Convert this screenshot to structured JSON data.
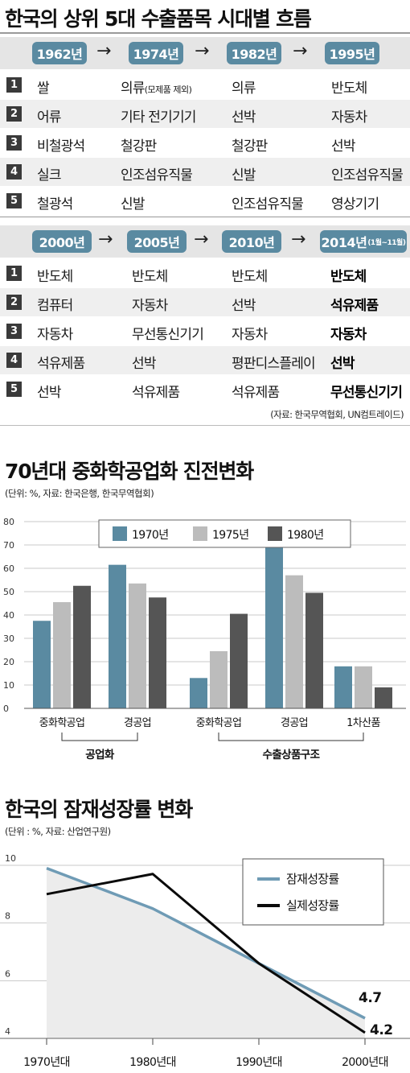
{
  "table": {
    "title": "한국의 상위 5대 수출품목 시대별 흐름",
    "block1": {
      "eras": [
        "1962년",
        "1974년",
        "1982년",
        "1995년"
      ],
      "rows": [
        {
          "rank": "1",
          "cells": [
            "쌀",
            "의류(모제품 제외)",
            "의류",
            "반도체"
          ]
        },
        {
          "rank": "2",
          "cells": [
            "어류",
            "기타 전기기기",
            "선박",
            "자동차"
          ]
        },
        {
          "rank": "3",
          "cells": [
            "비철광석",
            "철강판",
            "철강판",
            "선박"
          ]
        },
        {
          "rank": "4",
          "cells": [
            "실크",
            "인조섬유직물",
            "신발",
            "인조섬유직물"
          ]
        },
        {
          "rank": "5",
          "cells": [
            "철광석",
            "신발",
            "인조섬유직물",
            "영상기기"
          ]
        }
      ]
    },
    "block2": {
      "eras": [
        "2000년",
        "2005년",
        "2010년",
        "2014년"
      ],
      "era4_note": "(1월~11월)",
      "rows": [
        {
          "rank": "1",
          "cells": [
            "반도체",
            "반도체",
            "반도체",
            "반도체"
          ]
        },
        {
          "rank": "2",
          "cells": [
            "컴퓨터",
            "자동차",
            "선박",
            "석유제품"
          ]
        },
        {
          "rank": "3",
          "cells": [
            "자동차",
            "무선통신기기",
            "자동차",
            "자동차"
          ]
        },
        {
          "rank": "4",
          "cells": [
            "석유제품",
            "선박",
            "평판디스플레이",
            "선박"
          ]
        },
        {
          "rank": "5",
          "cells": [
            "선박",
            "석유제품",
            "석유제품",
            "무선통신기기"
          ]
        }
      ]
    },
    "source": "(자료: 한국무역협회, UN컴트레이드)",
    "colors": {
      "era_pill": "#5a8aa1",
      "rank_box": "#3a3a3a",
      "row_alt": "#efefef",
      "era_band": "#e5e5e5"
    }
  },
  "chart_data": [
    {
      "type": "bar",
      "title": "70년대 중화학공업화 진전변화",
      "subtitle": "(단위: %, 자료: 한국은행, 한국무역협회)",
      "categories": [
        "중화학공업",
        "경공업",
        "중화학공업",
        "경공업",
        "1차산품"
      ],
      "groups": [
        {
          "label": "공업화",
          "categories": [
            0,
            1
          ]
        },
        {
          "label": "수출상품구조",
          "categories": [
            2,
            3,
            4
          ]
        }
      ],
      "series": [
        {
          "name": "1970년",
          "color": "#5a8aa1",
          "values": [
            37.5,
            61.5,
            13,
            69.5,
            18
          ]
        },
        {
          "name": "1975년",
          "color": "#bcbcbc",
          "values": [
            45.5,
            53.5,
            24.5,
            57,
            18
          ]
        },
        {
          "name": "1980년",
          "color": "#555555",
          "values": [
            52.5,
            47.5,
            40.5,
            49.5,
            9
          ]
        }
      ],
      "ylim": [
        0,
        80
      ],
      "yticks": [
        0,
        10,
        20,
        30,
        40,
        50,
        60,
        70,
        80
      ],
      "grid": true,
      "legend": "top-center"
    },
    {
      "type": "line",
      "title": "한국의 잠재성장률 변화",
      "subtitle": "(단위 : %, 자료: 산업연구원)",
      "x": [
        "1970년대",
        "1980년대",
        "1990년대",
        "2000년대"
      ],
      "series": [
        {
          "name": "잠재성장률",
          "color": "#6f9bb5",
          "values": [
            9.9,
            8.5,
            6.6,
            4.7
          ],
          "end_label": "4.7"
        },
        {
          "name": "실제성장률",
          "color": "#0a0a0a",
          "values": [
            9.0,
            9.7,
            6.6,
            4.2
          ],
          "end_label": "4.2"
        }
      ],
      "ylim": [
        4,
        10
      ],
      "yticks": [
        4,
        6,
        8,
        10
      ],
      "grid": true,
      "legend": "top-right"
    }
  ]
}
